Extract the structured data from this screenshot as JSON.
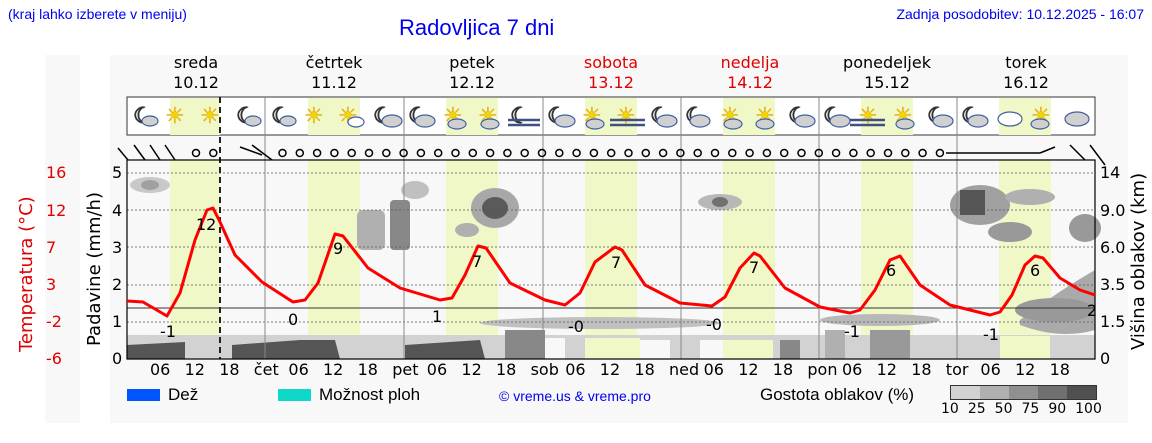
{
  "header": {
    "location_hint": "(kraj lahko izberete v meniju)",
    "title": "Radovljica 7 dni",
    "updated": "Zadnja posodobitev: 10.12.2025 - 16:07"
  },
  "days": [
    {
      "name": "sreda",
      "date": "10.12",
      "weekend": false
    },
    {
      "name": "četrtek",
      "date": "11.12",
      "weekend": false
    },
    {
      "name": "petek",
      "date": "12.12",
      "weekend": false
    },
    {
      "name": "sobota",
      "date": "13.12",
      "weekend": true
    },
    {
      "name": "nedelja",
      "date": "14.12",
      "weekend": true
    },
    {
      "name": "ponedeljek",
      "date": "15.12",
      "weekend": false
    },
    {
      "name": "torek",
      "date": "16.12",
      "weekend": false
    }
  ],
  "axes": {
    "temp_label": "Temperatura (°C)",
    "temp_ticks": [
      "16",
      "12",
      "7",
      "3",
      "-2",
      "-6"
    ],
    "precip_label": "Padavine (mm/h)",
    "precip_ticks": [
      "5",
      "4",
      "3",
      "2",
      "1",
      "0"
    ],
    "cloud_label": "Višina oblakov (km)",
    "cloud_ticks": [
      "14",
      "9.0",
      "6.0",
      "3.5",
      "1.5",
      "0"
    ],
    "x_ticks": [
      "06",
      "12",
      "18",
      "čet",
      "06",
      "12",
      "18",
      "pet",
      "06",
      "12",
      "18",
      "sob",
      "06",
      "12",
      "18",
      "ned",
      "06",
      "12",
      "18",
      "pon",
      "06",
      "12",
      "18",
      "tor",
      "06",
      "12",
      "18"
    ]
  },
  "legend": {
    "rain_label": "Dež",
    "rain_color": "#0055ff",
    "showers_label": "Možnost ploh",
    "showers_color": "#10d8c8",
    "copyright": "© vreme.us & vreme.pro",
    "cloud_density_label": "Gostota oblakov (%)",
    "cloud_density_ticks": [
      "10",
      "25",
      "50",
      "75",
      "90",
      "100"
    ],
    "cloud_density_colors": [
      "#d2d2d2",
      "#b0b0b0",
      "#909090",
      "#707070",
      "#505050"
    ]
  },
  "colors": {
    "temperature_line": "#ff0000",
    "daylight_band": "#f0f8c8",
    "panel_bg": "#f8f8f8",
    "weekend_text": "#e00000",
    "link_text": "#0000ee"
  },
  "chart_data": {
    "type": "line",
    "title": "Radovljica 7 dni",
    "xlabel": "",
    "ylabel": "Temperatura (°C)",
    "ylim": [
      -6,
      16
    ],
    "series": [
      {
        "name": "Temperatura (°C)",
        "min_max_labels": [
          {
            "day": "10.12",
            "min": -1,
            "max": 12
          },
          {
            "day": "11.12",
            "min": 0,
            "max": 9
          },
          {
            "day": "12.12",
            "min": 1,
            "max": 7
          },
          {
            "day": "13.12",
            "min": 0,
            "max": 7
          },
          {
            "day": "14.12",
            "min": 0,
            "max": 7
          },
          {
            "day": "15.12",
            "min": -1,
            "max": 6
          },
          {
            "day": "16.12",
            "min": -1,
            "max": 6
          }
        ],
        "end_value": 2
      }
    ],
    "secondary_axes": {
      "precipitation_mm_h": [
        0,
        5
      ],
      "cloud_height_km": [
        0,
        1.5,
        3.5,
        6.0,
        9.0,
        14
      ]
    },
    "precipitation": "none forecast",
    "grid": true
  }
}
